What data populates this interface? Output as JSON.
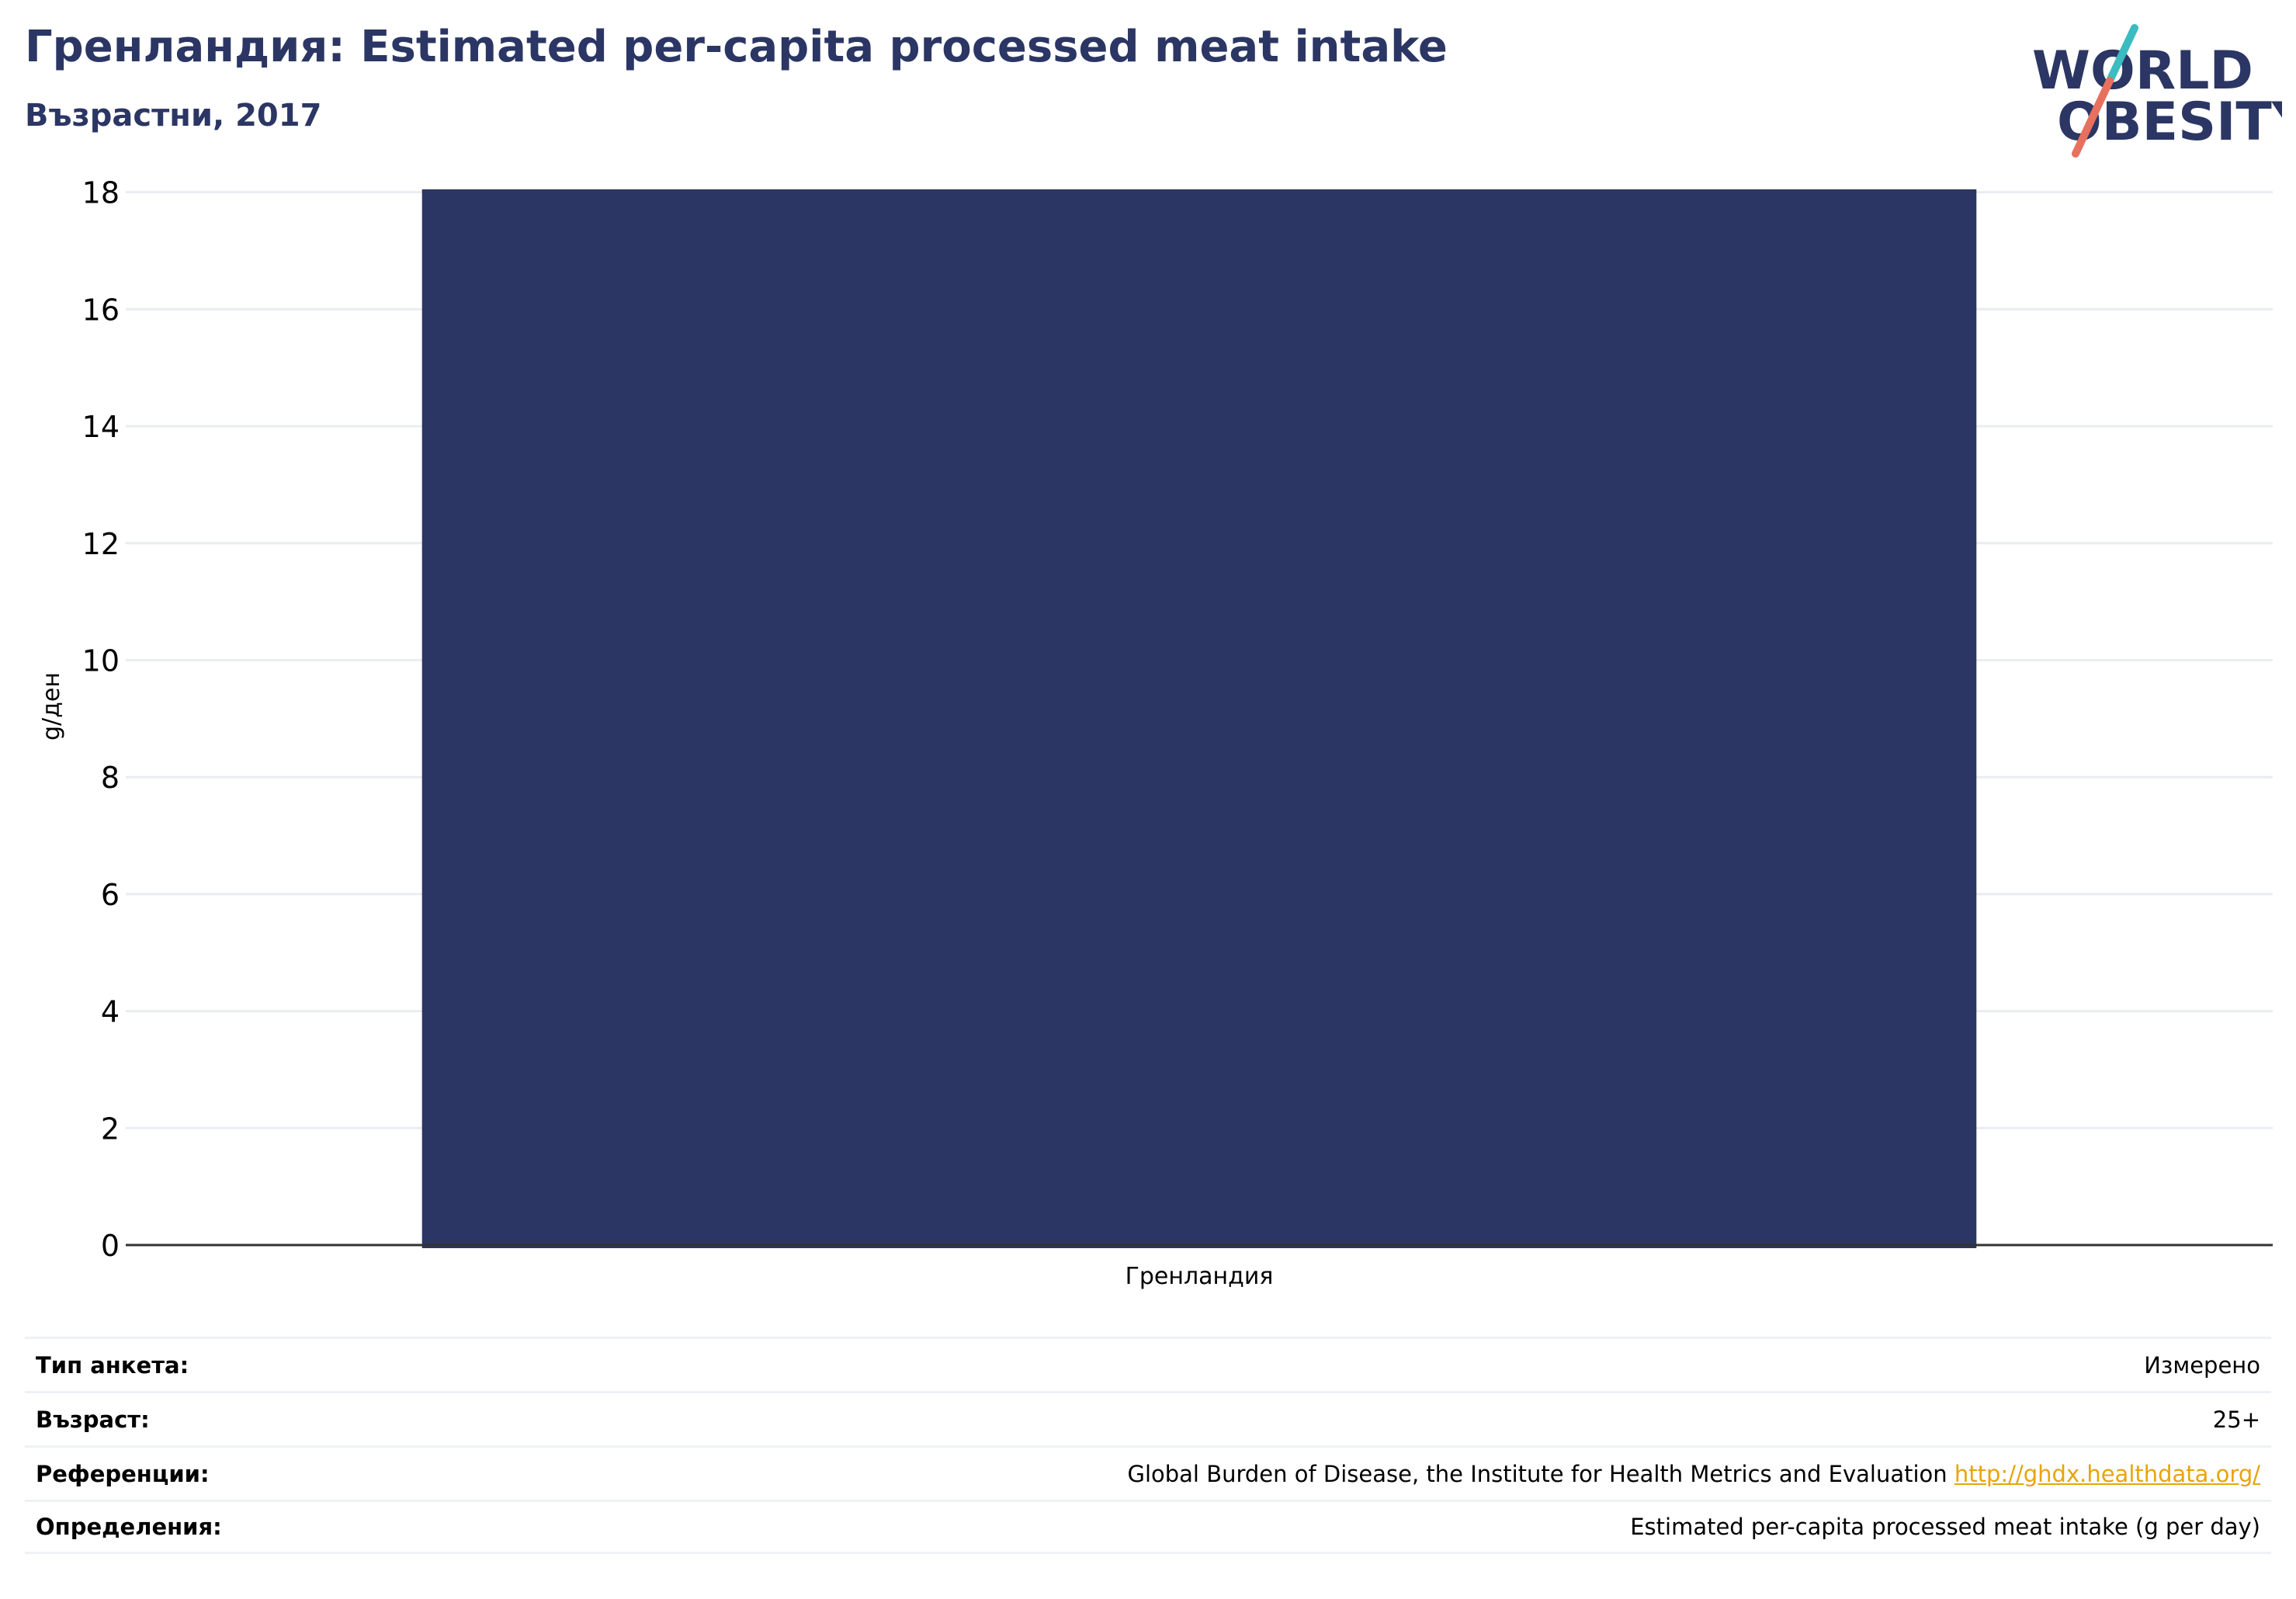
{
  "header": {
    "title": "Гренландия: Estimated per-capita processed meat intake",
    "subtitle": "Възрастни, 2017"
  },
  "logo": {
    "line1": "WORLD",
    "line2": "OBESITY",
    "colors": {
      "text": "#2b3664",
      "slash_top": "#3bbcc0",
      "slash_bottom": "#e8705e"
    }
  },
  "chart_data": {
    "type": "bar",
    "categories": [
      "Гренландия"
    ],
    "values": [
      18.05
    ],
    "ylabel": "g/ден",
    "xlabel": "",
    "ylim": [
      0,
      18.5
    ],
    "yticks": [
      0,
      2,
      4,
      6,
      8,
      10,
      12,
      14,
      16,
      18
    ],
    "grid": true,
    "bar_color": "#2b3664"
  },
  "footer": {
    "rows": [
      {
        "label": "Тип анкета:",
        "value": "Измерено"
      },
      {
        "label": "Възраст:",
        "value": "25+"
      },
      {
        "label": "Референции:",
        "value": "Global Burden of Disease, the Institute for Health Metrics and Evaluation",
        "link": "http://ghdx.healthdata.org/"
      },
      {
        "label": "Определения:",
        "value": "Estimated per-capita processed meat intake (g per day)"
      }
    ]
  }
}
